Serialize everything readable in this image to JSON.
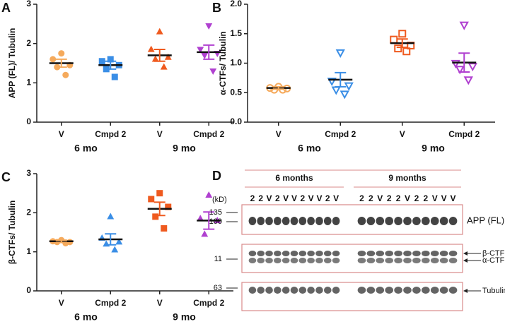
{
  "chart_data": [
    {
      "type": "scatter",
      "panel": "A",
      "ylabel": "APP (FL)/ Tubulin",
      "categories": [
        "V",
        "Cmpd 2",
        "V",
        "Cmpd 2"
      ],
      "groups": [
        "6 mo",
        "9 mo"
      ],
      "colors": [
        "#f5aa5c",
        "#3a8ee6",
        "#ef5a1f",
        "#b040d0"
      ],
      "markers": [
        "circle",
        "square",
        "triangle",
        "triangle-down"
      ],
      "filled": true,
      "points": [
        [
          1.75,
          1.6,
          1.45,
          1.4,
          1.2
        ],
        [
          1.6,
          1.55,
          1.45,
          1.35,
          1.15
        ],
        [
          2.3,
          1.85,
          1.65,
          1.6,
          1.4
        ],
        [
          2.45,
          1.85,
          1.75,
          1.7,
          1.3
        ]
      ],
      "means": [
        1.5,
        1.45,
        1.7,
        1.78
      ],
      "sems": [
        0.1,
        0.1,
        0.15,
        0.18
      ],
      "ylim": [
        0,
        3
      ],
      "yticks": [
        0,
        1,
        2,
        3
      ]
    },
    {
      "type": "scatter",
      "panel": "B",
      "ylabel": "α-CTFs/ Tubulin",
      "categories": [
        "V",
        "Cmpd 2",
        "V",
        "Cmpd 2"
      ],
      "groups": [
        "6 mo",
        "9 mo"
      ],
      "colors": [
        "#f5aa5c",
        "#3a8ee6",
        "#ef5a1f",
        "#b040d0"
      ],
      "markers": [
        "circle",
        "triangle-down",
        "square",
        "triangle-down"
      ],
      "filled": false,
      "points": [
        [
          0.6,
          0.58,
          0.57,
          0.55,
          0.55
        ],
        [
          1.18,
          0.7,
          0.62,
          0.55,
          0.48
        ],
        [
          1.5,
          1.4,
          1.3,
          1.25,
          1.2
        ],
        [
          1.65,
          1.0,
          0.95,
          0.9,
          0.72
        ]
      ],
      "means": [
        0.58,
        0.72,
        1.34,
        1.01
      ],
      "sems": [
        0.02,
        0.12,
        0.07,
        0.16
      ],
      "ylim": [
        0,
        2
      ],
      "yticks": [
        {
          "value": 0,
          "label": "0.0"
        },
        0.5,
        {
          "value": 1,
          "label": "1.0"
        },
        1.5,
        {
          "value": 2,
          "label": "2.0"
        }
      ]
    },
    {
      "type": "scatter",
      "panel": "C",
      "ylabel": "β-CTFs/ Tubulin",
      "categories": [
        "V",
        "Cmpd 2",
        "V",
        "Cmpd 2"
      ],
      "groups": [
        "6 mo",
        "9 mo"
      ],
      "colors": [
        "#f5aa5c",
        "#3a8ee6",
        "#ef5a1f",
        "#b040d0"
      ],
      "markers": [
        "circle",
        "triangle",
        "square",
        "triangle"
      ],
      "filled": true,
      "points": [
        [
          1.3,
          1.27,
          1.25,
          1.25,
          1.22
        ],
        [
          1.9,
          1.35,
          1.25,
          1.2,
          1.05
        ],
        [
          2.5,
          2.35,
          2.15,
          1.9,
          1.6
        ],
        [
          2.45,
          1.85,
          1.8,
          1.45
        ]
      ],
      "means": [
        1.27,
        1.32,
        2.1,
        1.8
      ],
      "sems": [
        0.03,
        0.14,
        0.17,
        0.22
      ],
      "ylim": [
        0,
        3
      ],
      "yticks": [
        0,
        1,
        2,
        3
      ]
    }
  ],
  "panel_d": {
    "panel": "D",
    "unit": "(kD)",
    "groups": [
      {
        "label": "6 months",
        "lanes": [
          "2",
          "2",
          "V",
          "2",
          "V",
          "V",
          "2",
          "V",
          "V",
          "2",
          "V"
        ],
        "lane_colors": {
          "2": "#3a8ee6",
          "V": "#e8a93a"
        }
      },
      {
        "label": "9 months",
        "lanes": [
          "2",
          "2",
          "V",
          "2",
          "2",
          "V",
          "2",
          "2",
          "V",
          "V",
          "V"
        ],
        "lane_colors": {
          "2": "#b040d0",
          "V": "#ef5a1f"
        }
      }
    ],
    "mw_markers": [
      135,
      100,
      11,
      63
    ],
    "bands": [
      "APP (FL)",
      "β-CTF",
      "α-CTF",
      "Tubulin"
    ]
  }
}
